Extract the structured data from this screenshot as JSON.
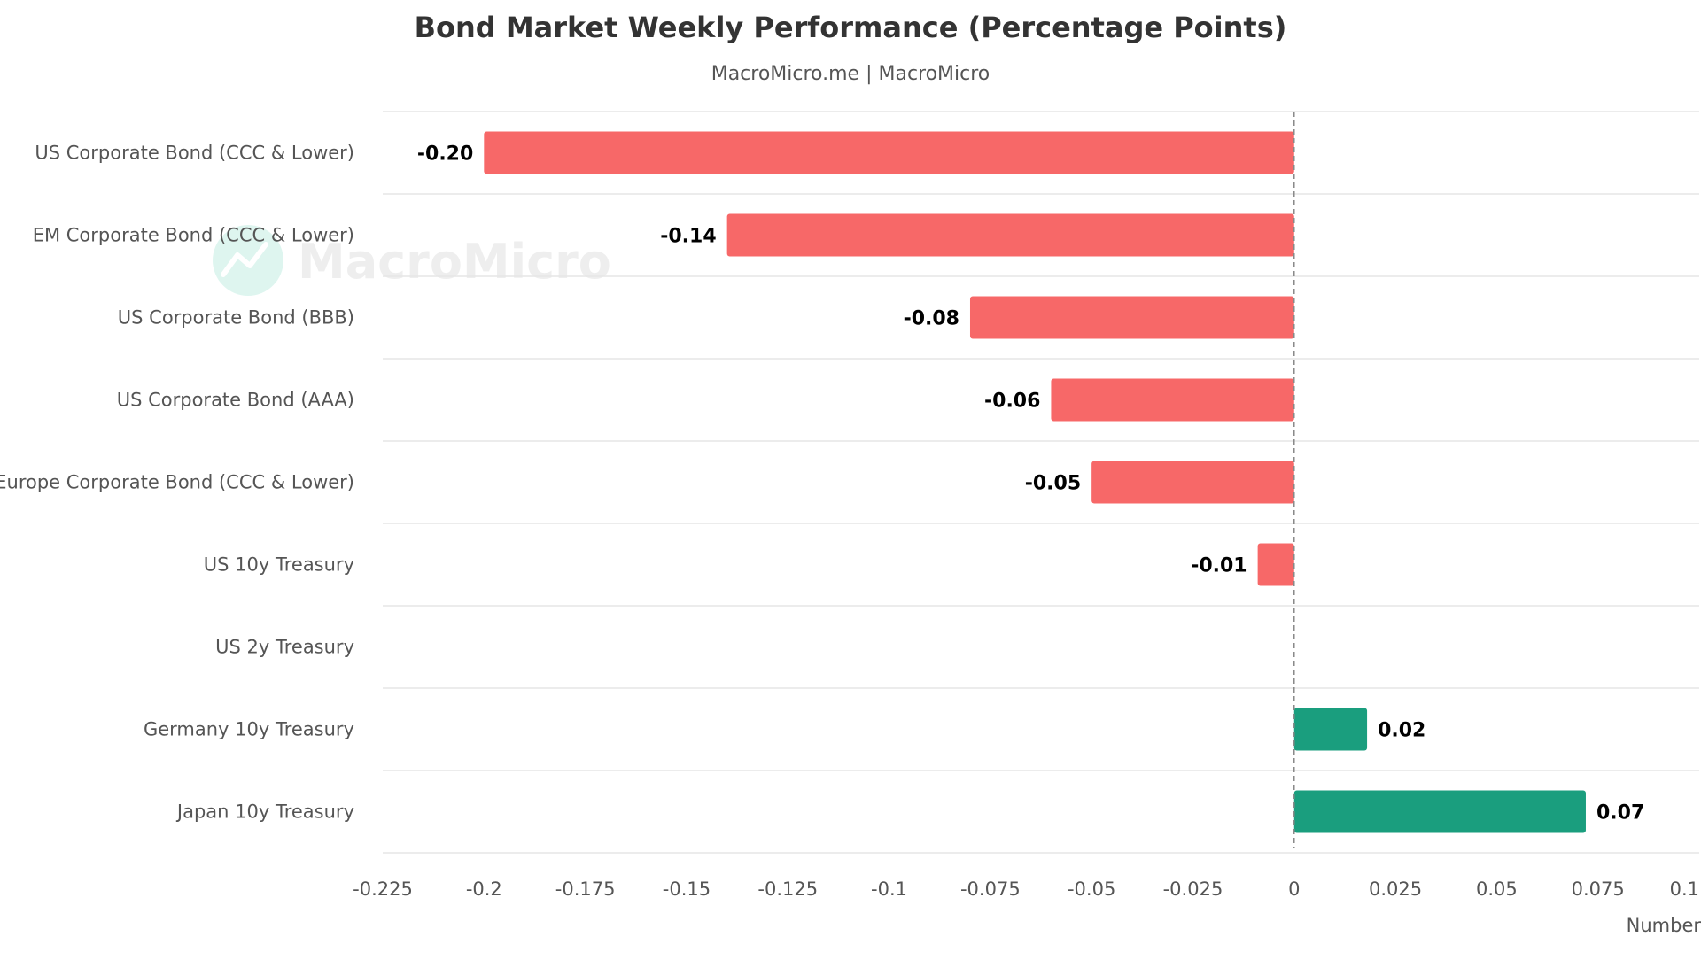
{
  "chart_data": {
    "type": "bar",
    "orientation": "horizontal",
    "title": "Bond Market Weekly Performance (Percentage Points)",
    "subtitle": "MacroMicro.me | MacroMicro",
    "watermark": "MacroMicro",
    "xlabel": "Number",
    "xlim": [
      -0.225,
      0.1
    ],
    "xticks": [
      -0.225,
      -0.2,
      -0.175,
      -0.15,
      -0.125,
      -0.1,
      -0.075,
      -0.05,
      -0.025,
      0,
      0.025,
      0.05,
      0.075,
      0.1
    ],
    "xtick_labels": [
      "-0.225",
      "-0.2",
      "-0.175",
      "-0.15",
      "-0.125",
      "-0.1",
      "-0.075",
      "-0.05",
      "-0.025",
      "0",
      "0.025",
      "0.05",
      "0.075",
      "0.1"
    ],
    "categories": [
      "US Corporate Bond (CCC & Lower)",
      "EM Corporate Bond (CCC & Lower)",
      "US Corporate Bond (BBB)",
      "US Corporate Bond (AAA)",
      "Europe Corporate Bond (CCC & Lower)",
      "US 10y Treasury",
      "US 2y Treasury",
      "Germany 10y Treasury",
      "Japan 10y Treasury"
    ],
    "values": [
      -0.2,
      -0.14,
      -0.08,
      -0.06,
      -0.05,
      -0.009,
      0,
      0.018,
      0.072
    ],
    "value_labels": [
      "-0.20",
      "-0.14",
      "-0.08",
      "-0.06",
      "-0.05",
      "-0.01",
      "",
      "0.02",
      "0.07"
    ],
    "colors": {
      "negative": "#f76868",
      "positive": "#1a9e7e",
      "grid": "#e6e6e6",
      "zero_line": "#888888"
    },
    "grid": true,
    "legend": "none"
  }
}
